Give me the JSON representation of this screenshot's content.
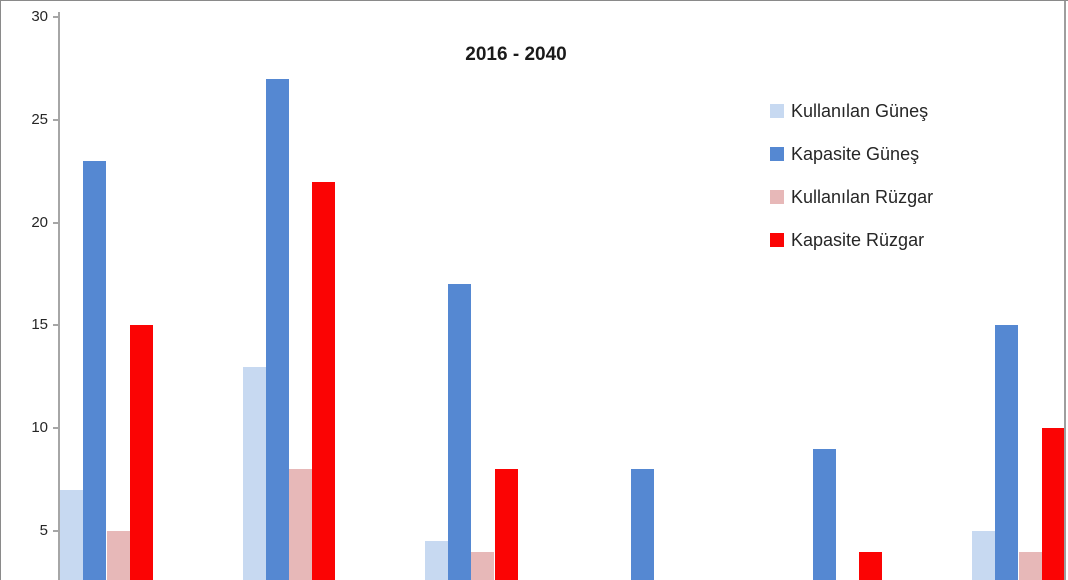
{
  "chart_data": {
    "type": "bar",
    "title": "2016 - 2040",
    "categories": [
      "",
      "",
      "",
      "",
      "",
      ""
    ],
    "series": [
      {
        "name": "Kullanılan Güneş",
        "color": "#c7d9f1",
        "values": [
          7,
          13,
          4.5,
          0,
          0,
          5
        ]
      },
      {
        "name": "Kapasite Güneş",
        "color": "#5588d2",
        "values": [
          23,
          27,
          17,
          8,
          9,
          15
        ]
      },
      {
        "name": "Kullanılan Rüzgar",
        "color": "#e7b8b8",
        "values": [
          5,
          8,
          4,
          0,
          0,
          4
        ]
      },
      {
        "name": "Kapasite Rüzgar",
        "color": "#fb0404",
        "values": [
          15,
          22,
          8,
          0,
          4,
          10
        ]
      }
    ],
    "y_ticks": [
      30,
      25,
      20,
      15,
      10,
      5
    ],
    "ylim": [
      0,
      30
    ],
    "xlabel": "",
    "ylabel": "",
    "grid": false,
    "legend_position": "right-top"
  },
  "colors": {
    "axis": "#a6a6a6",
    "border": "#8a8a8a",
    "text": "#262626"
  }
}
